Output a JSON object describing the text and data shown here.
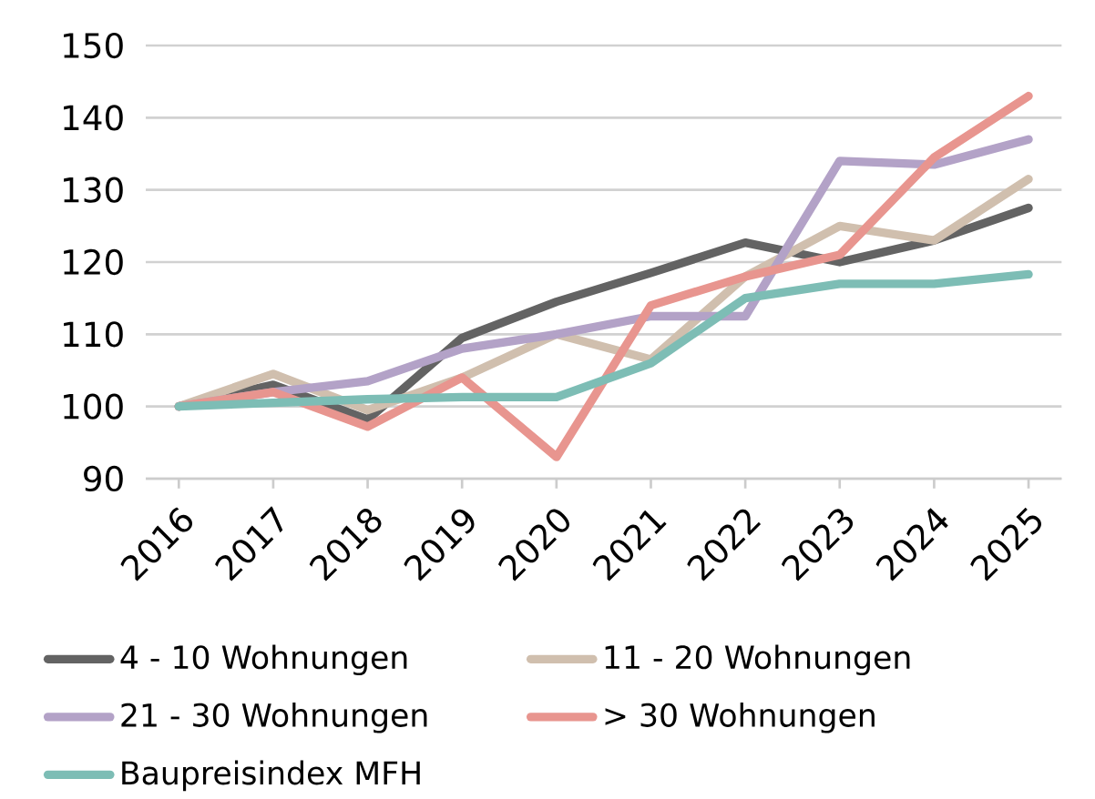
{
  "chart_data": {
    "type": "line",
    "categories": [
      "2016",
      "2017",
      "2018",
      "2019",
      "2020",
      "2021",
      "2022",
      "2023",
      "2024",
      "2025"
    ],
    "series": [
      {
        "name": "4 - 10 Wohnungen",
        "color": "#636363",
        "values": [
          100,
          103,
          98.2,
          109.5,
          114.5,
          118.5,
          122.7,
          120,
          123,
          127.5
        ]
      },
      {
        "name": "11 - 20 Wohnungen",
        "color": "#d0bfae",
        "values": [
          100,
          104.5,
          99.5,
          104,
          110,
          106.5,
          118,
          125,
          123,
          131.5
        ]
      },
      {
        "name": "21 - 30 Wohnungen",
        "color": "#b3a2c7",
        "values": [
          100,
          102,
          103.5,
          108,
          110,
          112.5,
          112.5,
          134,
          133.5,
          137
        ]
      },
      {
        "name": "> 30 Wohnungen",
        "color": "#e8958f",
        "values": [
          100,
          102,
          97.2,
          104,
          93,
          114,
          118,
          121,
          134.5,
          143
        ]
      },
      {
        "name": "Baupreisindex MFH",
        "color": "#7dbdb5",
        "values": [
          100,
          100.5,
          101,
          101.3,
          101.3,
          106,
          115,
          117,
          117,
          118.3
        ]
      }
    ],
    "ylim": [
      90,
      150
    ],
    "yticks": [
      90,
      100,
      110,
      120,
      130,
      140,
      150
    ],
    "grid": "y",
    "legend": "bottom",
    "marker": "none",
    "line_style": "solid"
  }
}
